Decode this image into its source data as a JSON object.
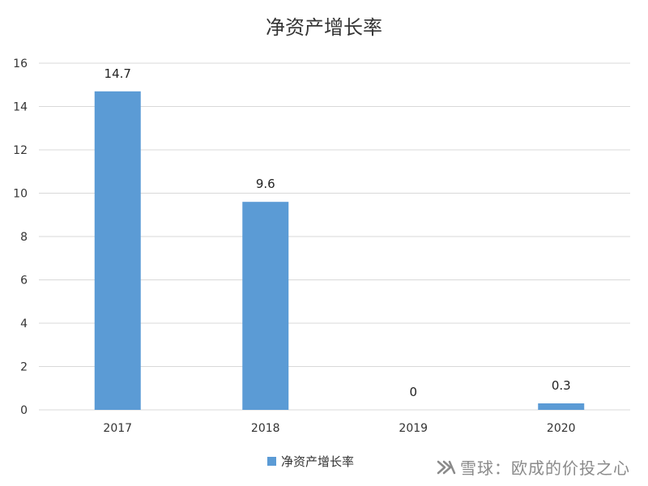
{
  "chart_data": {
    "type": "bar",
    "title": "净资产增长率",
    "categories": [
      "2017",
      "2018",
      "2019",
      "2020"
    ],
    "series": [
      {
        "name": "净资产增长率",
        "values": [
          14.7,
          9.6,
          0,
          0.3
        ]
      }
    ],
    "data_labels": [
      "14.7",
      "9.6",
      "0",
      "0.3"
    ],
    "ylim": [
      0,
      16
    ],
    "yticks": [
      0,
      2,
      4,
      6,
      8,
      10,
      12,
      14,
      16
    ],
    "grid": true,
    "legend_position": "bottom",
    "bar_color": "#5b9bd5",
    "grid_color": "#d9d9d9"
  },
  "watermark": {
    "text": "雪球：欧成的价投之心",
    "icon": "snowball-logo-icon"
  }
}
